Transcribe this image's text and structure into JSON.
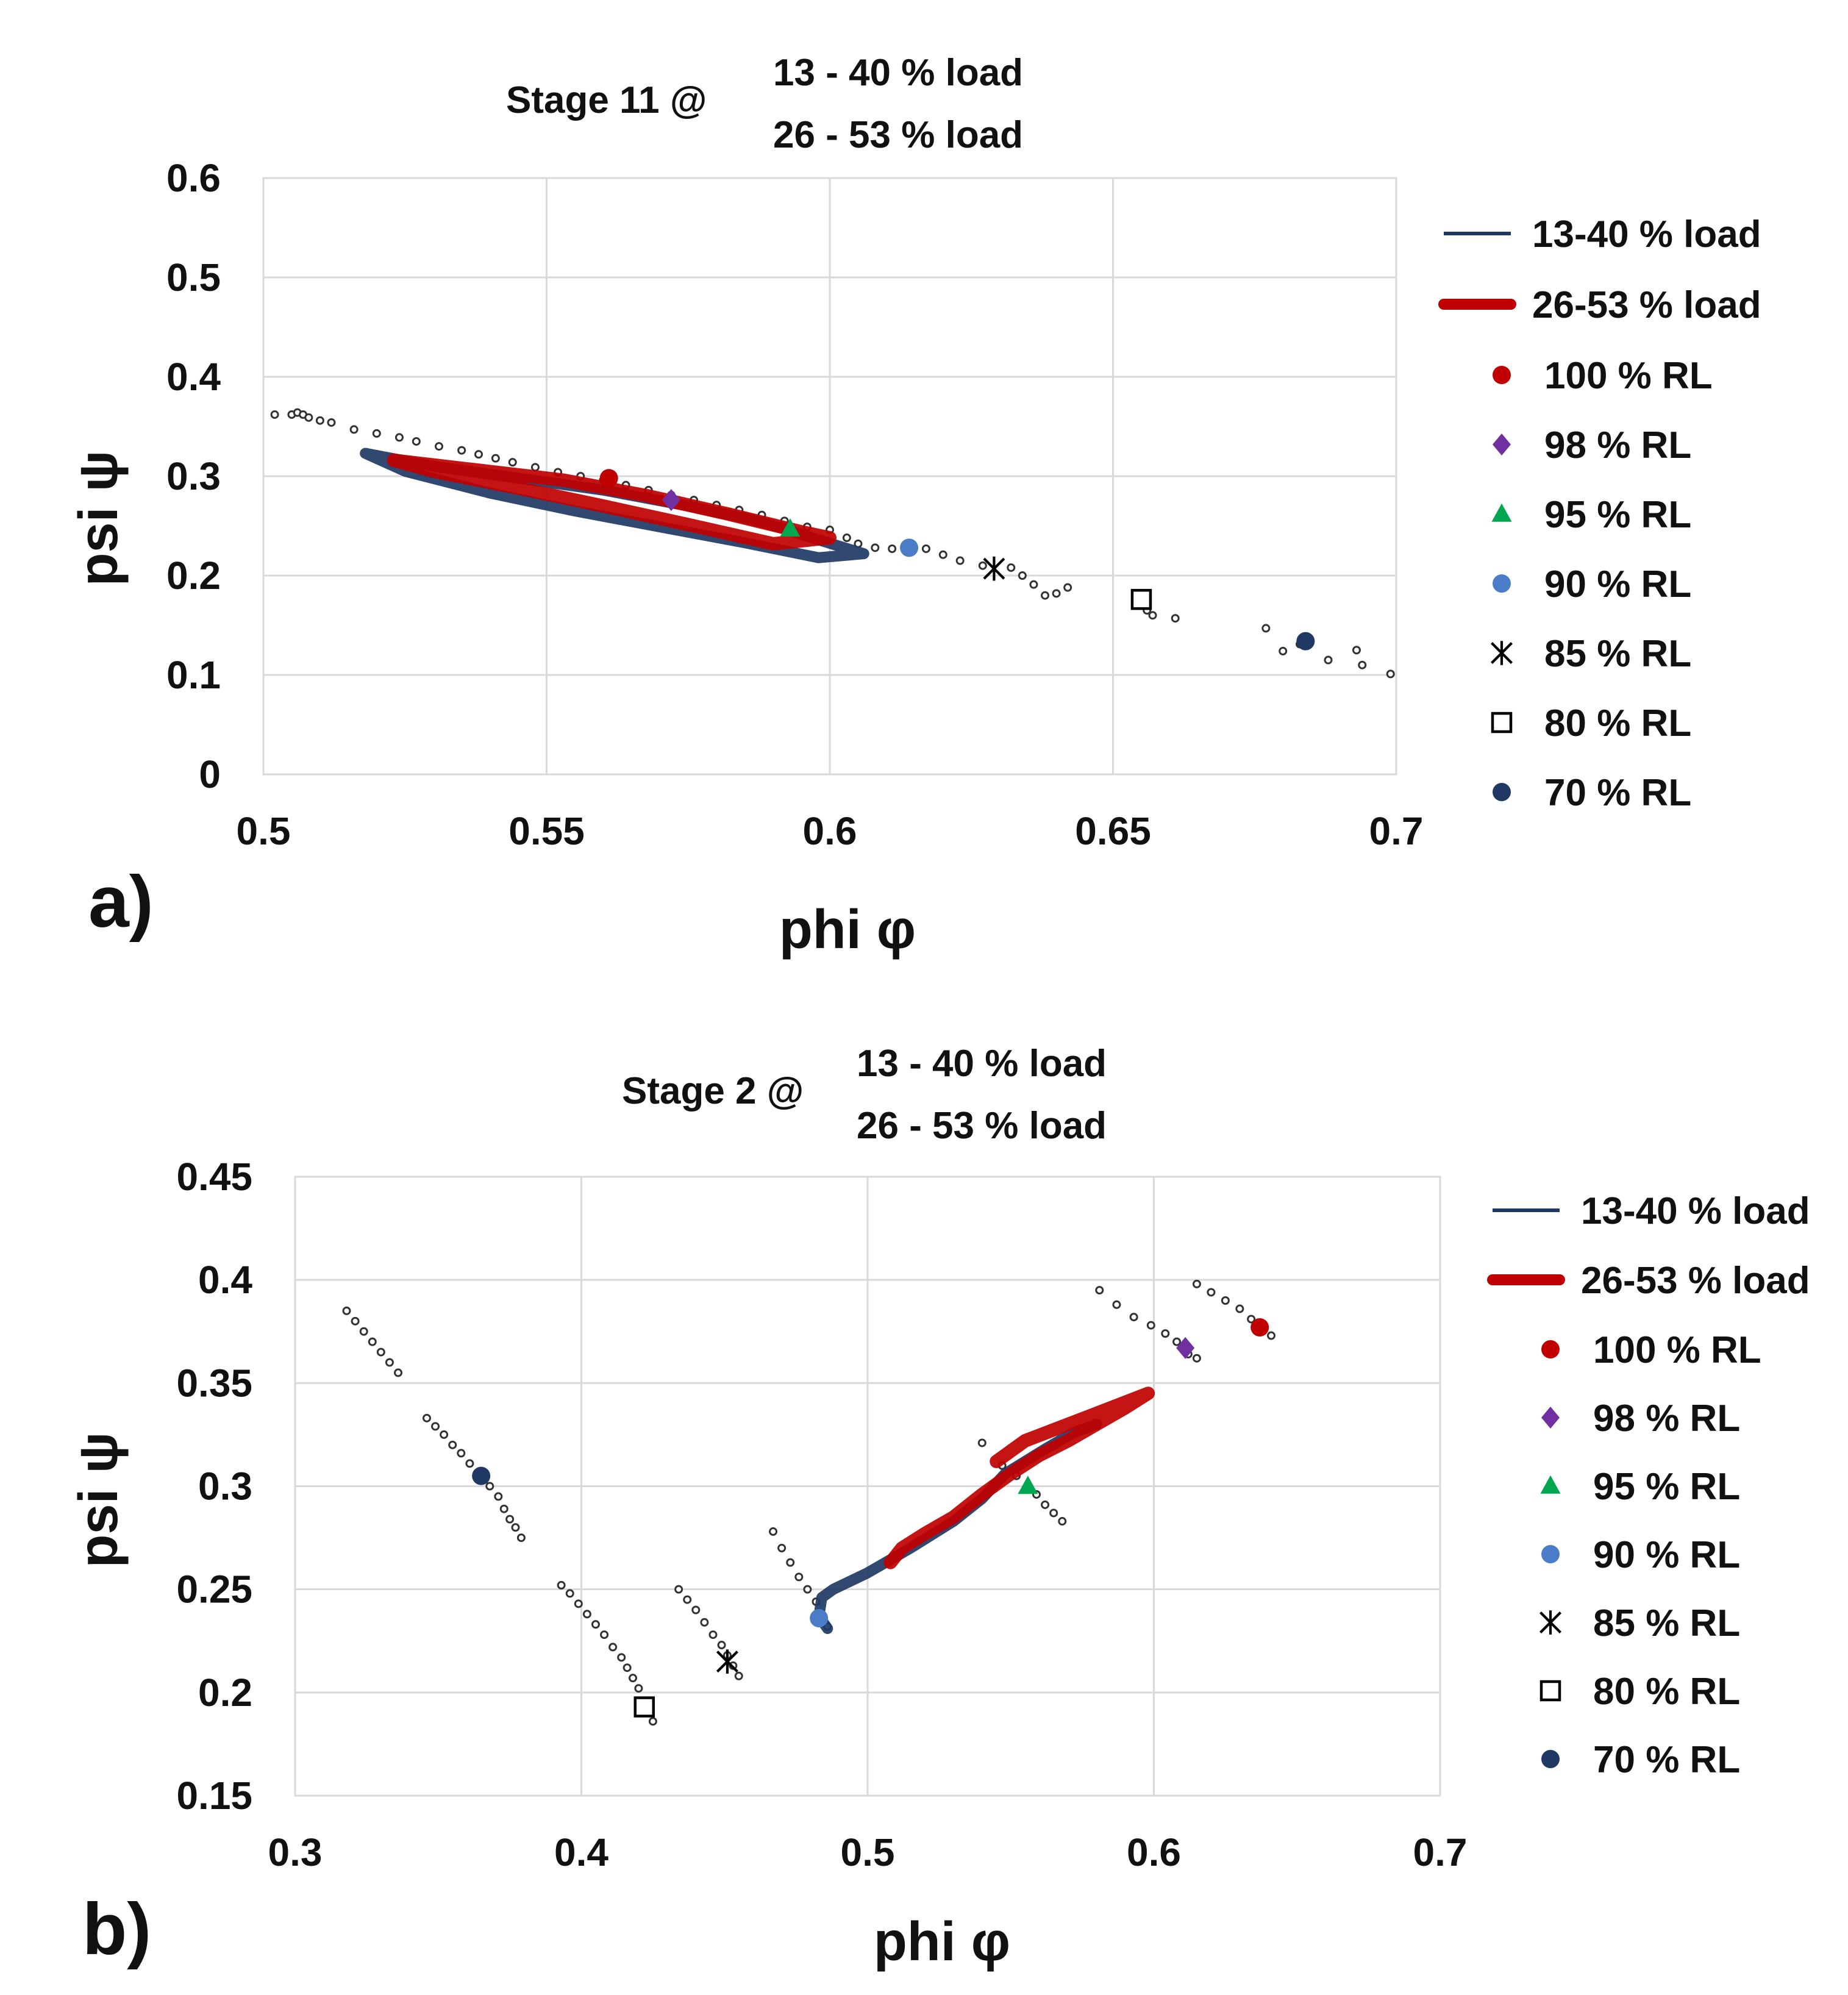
{
  "panels": [
    {
      "label": "a)",
      "title_prefix": "Stage 11  @",
      "title_lines": [
        "13 - 40 % load",
        "26 - 53 % load"
      ],
      "xlabel": "phi φ",
      "ylabel": "psi ψ",
      "legend_entries": [
        "13-40 % load",
        "26-53 % load",
        "100 % RL",
        "98 % RL",
        "95 % RL",
        "90 % RL",
        "85 % RL",
        "80 % RL",
        "70 % RL"
      ]
    },
    {
      "label": "b)",
      "title_prefix": "Stage 2 @",
      "title_lines": [
        "13 - 40 % load",
        "26 - 53 % load"
      ],
      "xlabel": "phi φ",
      "ylabel": "psi ψ",
      "legend_entries": [
        "13-40 % load",
        "26-53 % load",
        "100 % RL",
        "98 % RL",
        "95 % RL",
        "90 % RL",
        "85 % RL",
        "80 % RL",
        "70 % RL"
      ]
    }
  ],
  "colors": {
    "load_13_40": "#1f3864",
    "load_26_53": "#c00000",
    "rl_100": "#c00000",
    "rl_98": "#7030a0",
    "rl_95": "#00a650",
    "rl_90": "#4a7cc7",
    "rl_85": "#000000",
    "rl_80": "#000000",
    "rl_70": "#1f3864",
    "dots": "#555555",
    "grid": "#d9d9d9"
  },
  "chart_data": [
    {
      "type": "scatter",
      "xlim": [
        0.5,
        0.7
      ],
      "ylim": [
        0,
        0.6
      ],
      "x_ticks": [
        "0.5",
        "0.55",
        "0.6",
        "0.65",
        "0.7"
      ],
      "y_ticks": [
        "0",
        "0.1",
        "0.2",
        "0.3",
        "0.4",
        "0.5",
        "0.6"
      ],
      "grid": true,
      "legend": "right",
      "series": [
        {
          "name": "13-40 % load",
          "kind": "line",
          "points": [
            [
              0.518,
              0.323
            ],
            [
              0.53,
              0.31
            ],
            [
              0.545,
              0.298
            ],
            [
              0.56,
              0.286
            ],
            [
              0.575,
              0.27
            ],
            [
              0.588,
              0.254
            ],
            [
              0.598,
              0.236
            ],
            [
              0.606,
              0.222
            ],
            [
              0.598,
              0.218
            ],
            [
              0.585,
              0.233
            ],
            [
              0.57,
              0.249
            ],
            [
              0.555,
              0.265
            ],
            [
              0.54,
              0.283
            ],
            [
              0.525,
              0.305
            ],
            [
              0.518,
              0.323
            ]
          ]
        },
        {
          "name": "26-53 % load",
          "kind": "line",
          "points": [
            [
              0.523,
              0.316
            ],
            [
              0.538,
              0.306
            ],
            [
              0.553,
              0.296
            ],
            [
              0.568,
              0.28
            ],
            [
              0.582,
              0.262
            ],
            [
              0.595,
              0.244
            ],
            [
              0.6,
              0.238
            ],
            [
              0.59,
              0.232
            ],
            [
              0.576,
              0.25
            ],
            [
              0.56,
              0.27
            ],
            [
              0.545,
              0.288
            ],
            [
              0.53,
              0.305
            ],
            [
              0.523,
              0.316
            ]
          ]
        },
        {
          "name": "100 % RL",
          "kind": "marker",
          "points": [
            [
              0.561,
              0.298
            ]
          ]
        },
        {
          "name": "98 % RL",
          "kind": "marker",
          "points": [
            [
              0.572,
              0.276
            ]
          ]
        },
        {
          "name": "95 % RL",
          "kind": "marker",
          "points": [
            [
              0.593,
              0.247
            ]
          ]
        },
        {
          "name": "90 % RL",
          "kind": "marker",
          "points": [
            [
              0.614,
              0.228
            ]
          ]
        },
        {
          "name": "85 % RL",
          "kind": "marker",
          "points": [
            [
              0.629,
              0.207
            ]
          ]
        },
        {
          "name": "80 % RL",
          "kind": "marker",
          "points": [
            [
              0.655,
              0.176
            ]
          ]
        },
        {
          "name": "70 % RL",
          "kind": "marker",
          "points": [
            [
              0.684,
              0.134
            ]
          ]
        },
        {
          "name": "",
          "kind": "dots",
          "points": [
            [
              0.502,
              0.362
            ],
            [
              0.505,
              0.362
            ],
            [
              0.506,
              0.364
            ],
            [
              0.507,
              0.362
            ],
            [
              0.508,
              0.359
            ],
            [
              0.51,
              0.356
            ],
            [
              0.512,
              0.354
            ],
            [
              0.516,
              0.347
            ],
            [
              0.52,
              0.343
            ],
            [
              0.524,
              0.339
            ],
            [
              0.527,
              0.335
            ],
            [
              0.531,
              0.33
            ],
            [
              0.535,
              0.326
            ],
            [
              0.538,
              0.322
            ],
            [
              0.541,
              0.318
            ],
            [
              0.544,
              0.314
            ],
            [
              0.548,
              0.309
            ],
            [
              0.552,
              0.304
            ],
            [
              0.556,
              0.3
            ],
            [
              0.56,
              0.296
            ],
            [
              0.564,
              0.291
            ],
            [
              0.568,
              0.286
            ],
            [
              0.572,
              0.281
            ],
            [
              0.576,
              0.276
            ],
            [
              0.58,
              0.271
            ],
            [
              0.584,
              0.266
            ],
            [
              0.588,
              0.261
            ],
            [
              0.592,
              0.255
            ],
            [
              0.596,
              0.249
            ],
            [
              0.6,
              0.246
            ],
            [
              0.603,
              0.238
            ],
            [
              0.605,
              0.232
            ],
            [
              0.608,
              0.228
            ],
            [
              0.611,
              0.227
            ],
            [
              0.617,
              0.227
            ],
            [
              0.62,
              0.221
            ],
            [
              0.623,
              0.215
            ],
            [
              0.627,
              0.21
            ],
            [
              0.632,
              0.208
            ],
            [
              0.634,
              0.2
            ],
            [
              0.636,
              0.191
            ],
            [
              0.638,
              0.18
            ],
            [
              0.64,
              0.182
            ],
            [
              0.642,
              0.188
            ],
            [
              0.656,
              0.165
            ],
            [
              0.657,
              0.16
            ],
            [
              0.661,
              0.157
            ],
            [
              0.677,
              0.147
            ],
            [
              0.68,
              0.124
            ],
            [
              0.683,
              0.131
            ],
            [
              0.688,
              0.115
            ],
            [
              0.693,
              0.125
            ],
            [
              0.694,
              0.11
            ],
            [
              0.699,
              0.101
            ]
          ]
        }
      ]
    },
    {
      "type": "scatter",
      "xlim": [
        0.3,
        0.7
      ],
      "ylim": [
        0.15,
        0.45
      ],
      "x_ticks": [
        "0.3",
        "0.4",
        "0.5",
        "0.6",
        "0.7"
      ],
      "y_ticks": [
        "0.15",
        "0.2",
        "0.25",
        "0.3",
        "0.35",
        "0.4",
        "0.45"
      ],
      "grid": true,
      "legend": "right",
      "series": [
        {
          "name": "13-40 % load",
          "kind": "line",
          "points": [
            [
              0.486,
              0.231
            ],
            [
              0.483,
              0.237
            ],
            [
              0.484,
              0.246
            ],
            [
              0.488,
              0.25
            ],
            [
              0.5,
              0.258
            ],
            [
              0.515,
              0.27
            ],
            [
              0.53,
              0.283
            ],
            [
              0.54,
              0.294
            ],
            [
              0.548,
              0.306
            ],
            [
              0.555,
              0.312
            ],
            [
              0.562,
              0.318
            ],
            [
              0.572,
              0.326
            ],
            [
              0.58,
              0.33
            ]
          ]
        },
        {
          "name": "26-53 % load",
          "kind": "line",
          "points": [
            [
              0.508,
              0.263
            ],
            [
              0.512,
              0.27
            ],
            [
              0.52,
              0.277
            ],
            [
              0.53,
              0.285
            ],
            [
              0.54,
              0.296
            ],
            [
              0.55,
              0.306
            ],
            [
              0.56,
              0.315
            ],
            [
              0.57,
              0.322
            ],
            [
              0.58,
              0.33
            ],
            [
              0.59,
              0.338
            ],
            [
              0.598,
              0.345
            ],
            [
              0.585,
              0.338
            ],
            [
              0.57,
              0.33
            ],
            [
              0.555,
              0.322
            ],
            [
              0.545,
              0.312
            ]
          ]
        },
        {
          "name": "100 % RL",
          "kind": "marker",
          "points": [
            [
              0.637,
              0.377
            ]
          ]
        },
        {
          "name": "98 % RL",
          "kind": "marker",
          "points": [
            [
              0.611,
              0.367
            ]
          ]
        },
        {
          "name": "95 % RL",
          "kind": "marker",
          "points": [
            [
              0.556,
              0.3
            ]
          ]
        },
        {
          "name": "90 % RL",
          "kind": "marker",
          "points": [
            [
              0.483,
              0.236
            ]
          ]
        },
        {
          "name": "85 % RL",
          "kind": "marker",
          "points": [
            [
              0.451,
              0.215
            ]
          ]
        },
        {
          "name": "80 % RL",
          "kind": "marker",
          "points": [
            [
              0.422,
              0.193
            ]
          ]
        },
        {
          "name": "70 % RL",
          "kind": "marker",
          "points": [
            [
              0.365,
              0.305
            ]
          ]
        },
        {
          "name": "",
          "kind": "dots",
          "points": [
            [
              0.318,
              0.385
            ],
            [
              0.321,
              0.38
            ],
            [
              0.324,
              0.375
            ],
            [
              0.327,
              0.37
            ],
            [
              0.33,
              0.365
            ],
            [
              0.333,
              0.36
            ],
            [
              0.336,
              0.355
            ],
            [
              0.346,
              0.333
            ],
            [
              0.349,
              0.329
            ],
            [
              0.352,
              0.325
            ],
            [
              0.355,
              0.32
            ],
            [
              0.358,
              0.316
            ],
            [
              0.361,
              0.311
            ],
            [
              0.364,
              0.305
            ],
            [
              0.368,
              0.3
            ],
            [
              0.371,
              0.295
            ],
            [
              0.373,
              0.289
            ],
            [
              0.375,
              0.284
            ],
            [
              0.377,
              0.28
            ],
            [
              0.379,
              0.275
            ],
            [
              0.393,
              0.252
            ],
            [
              0.396,
              0.248
            ],
            [
              0.399,
              0.243
            ],
            [
              0.402,
              0.238
            ],
            [
              0.405,
              0.233
            ],
            [
              0.408,
              0.228
            ],
            [
              0.411,
              0.222
            ],
            [
              0.414,
              0.217
            ],
            [
              0.416,
              0.212
            ],
            [
              0.418,
              0.207
            ],
            [
              0.42,
              0.202
            ],
            [
              0.422,
              0.196
            ],
            [
              0.424,
              0.19
            ],
            [
              0.425,
              0.186
            ],
            [
              0.434,
              0.25
            ],
            [
              0.437,
              0.245
            ],
            [
              0.44,
              0.24
            ],
            [
              0.443,
              0.234
            ],
            [
              0.446,
              0.228
            ],
            [
              0.449,
              0.223
            ],
            [
              0.451,
              0.218
            ],
            [
              0.453,
              0.213
            ],
            [
              0.455,
              0.208
            ],
            [
              0.467,
              0.278
            ],
            [
              0.47,
              0.27
            ],
            [
              0.473,
              0.263
            ],
            [
              0.476,
              0.256
            ],
            [
              0.479,
              0.25
            ],
            [
              0.482,
              0.244
            ],
            [
              0.484,
              0.238
            ],
            [
              0.486,
              0.232
            ],
            [
              0.54,
              0.321
            ],
            [
              0.547,
              0.31
            ],
            [
              0.552,
              0.305
            ],
            [
              0.556,
              0.3
            ],
            [
              0.559,
              0.296
            ],
            [
              0.562,
              0.291
            ],
            [
              0.565,
              0.287
            ],
            [
              0.568,
              0.283
            ],
            [
              0.581,
              0.395
            ],
            [
              0.587,
              0.388
            ],
            [
              0.593,
              0.382
            ],
            [
              0.599,
              0.378
            ],
            [
              0.604,
              0.374
            ],
            [
              0.608,
              0.37
            ],
            [
              0.612,
              0.364
            ],
            [
              0.615,
              0.362
            ],
            [
              0.615,
              0.398
            ],
            [
              0.62,
              0.394
            ],
            [
              0.625,
              0.39
            ],
            [
              0.63,
              0.386
            ],
            [
              0.634,
              0.381
            ],
            [
              0.638,
              0.377
            ],
            [
              0.641,
              0.373
            ]
          ]
        }
      ]
    }
  ]
}
